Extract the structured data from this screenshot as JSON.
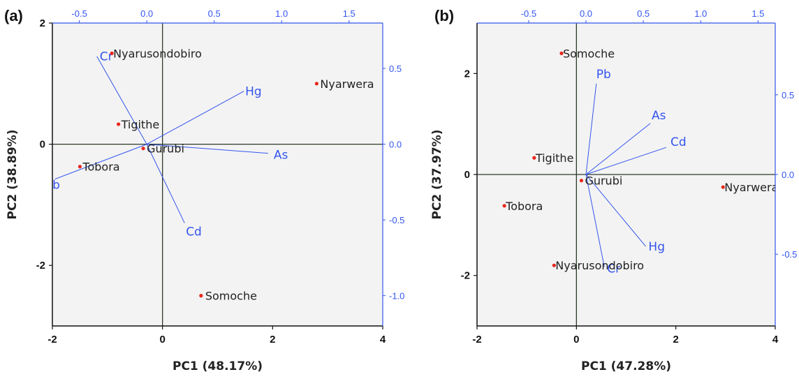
{
  "colors": {
    "loading_blue": "#3355ee",
    "point_red": "#e8261c",
    "zero_line": "#2d3b2a",
    "plot_bg": "#f3f3f3",
    "frame_black": "#111111"
  },
  "chart_data": [
    {
      "type": "scatter",
      "panel_label": "(a)",
      "title": "",
      "xlabel": "PC1 (48.17%)",
      "ylabel": "PC2 (38.89%)",
      "xlim": [
        -2,
        4
      ],
      "ylim": [
        -3,
        2
      ],
      "xticks": [
        "-2",
        "0",
        "2",
        "4"
      ],
      "yticks": [
        "-2",
        "0",
        "2"
      ],
      "loading_xlim": [
        -0.7,
        1.75
      ],
      "loading_ylim": [
        -1.2,
        0.8
      ],
      "loading_xticks": [
        "-0.5",
        "0.0",
        "0.5",
        "1.0",
        "1.5"
      ],
      "loading_yticks": [
        "-1.0",
        "-0.5",
        "0.0",
        "0.5"
      ],
      "grid": false,
      "scores": [
        {
          "label": "Nyarusondobiro",
          "x": -0.92,
          "y": 1.5
        },
        {
          "label": "Nyarwera",
          "x": 2.8,
          "y": 1.0
        },
        {
          "label": "Tigithe",
          "x": -0.8,
          "y": 0.33
        },
        {
          "label": "Gurubi",
          "x": -0.35,
          "y": -0.07
        },
        {
          "label": "Tobora",
          "x": -1.5,
          "y": -0.37
        },
        {
          "label": "Somoche",
          "x": 0.7,
          "y": -2.5
        }
      ],
      "loadings": [
        {
          "label": "Cr",
          "x": -0.37,
          "y": 0.58
        },
        {
          "label": "Hg",
          "x": 0.72,
          "y": 0.35
        },
        {
          "label": "As",
          "x": 0.9,
          "y": -0.06
        },
        {
          "label": "Pb",
          "x": -0.68,
          "y": -0.23
        },
        {
          "label": "Cd",
          "x": 0.28,
          "y": -0.52
        }
      ]
    },
    {
      "type": "scatter",
      "panel_label": "(b)",
      "title": "",
      "xlabel": "PC1 (47.28%)",
      "ylabel": "PC2 (37.97%)",
      "xlim": [
        -2,
        4
      ],
      "ylim": [
        -3,
        3
      ],
      "xticks": [
        "-2",
        "0",
        "2",
        "4"
      ],
      "yticks": [
        "-2",
        "0",
        "2"
      ],
      "loading_xlim": [
        -0.95,
        1.65
      ],
      "loading_ylim": [
        -0.95,
        0.95
      ],
      "loading_xticks": [
        "-0.5",
        "0.0",
        "0.5",
        "1.0",
        "1.5"
      ],
      "loading_yticks": [
        "-0.5",
        "0.0",
        "0.5"
      ],
      "grid": false,
      "scores": [
        {
          "label": "Somoche",
          "x": -0.3,
          "y": 2.4
        },
        {
          "label": "Tigithe",
          "x": -0.85,
          "y": 0.33
        },
        {
          "label": "Gurubi",
          "x": 0.1,
          "y": -0.12
        },
        {
          "label": "Nyarwera",
          "x": 2.95,
          "y": -0.25
        },
        {
          "label": "Tobora",
          "x": -1.45,
          "y": -0.62
        },
        {
          "label": "Nyarusondobiro",
          "x": -0.45,
          "y": -1.8
        }
      ],
      "loadings": [
        {
          "label": "Pb",
          "x": 0.09,
          "y": 0.57
        },
        {
          "label": "As",
          "x": 0.56,
          "y": 0.32
        },
        {
          "label": "Cd",
          "x": 0.7,
          "y": 0.17
        },
        {
          "label": "Hg",
          "x": 0.52,
          "y": -0.45
        },
        {
          "label": "Cr",
          "x": 0.16,
          "y": -0.58
        }
      ]
    }
  ]
}
